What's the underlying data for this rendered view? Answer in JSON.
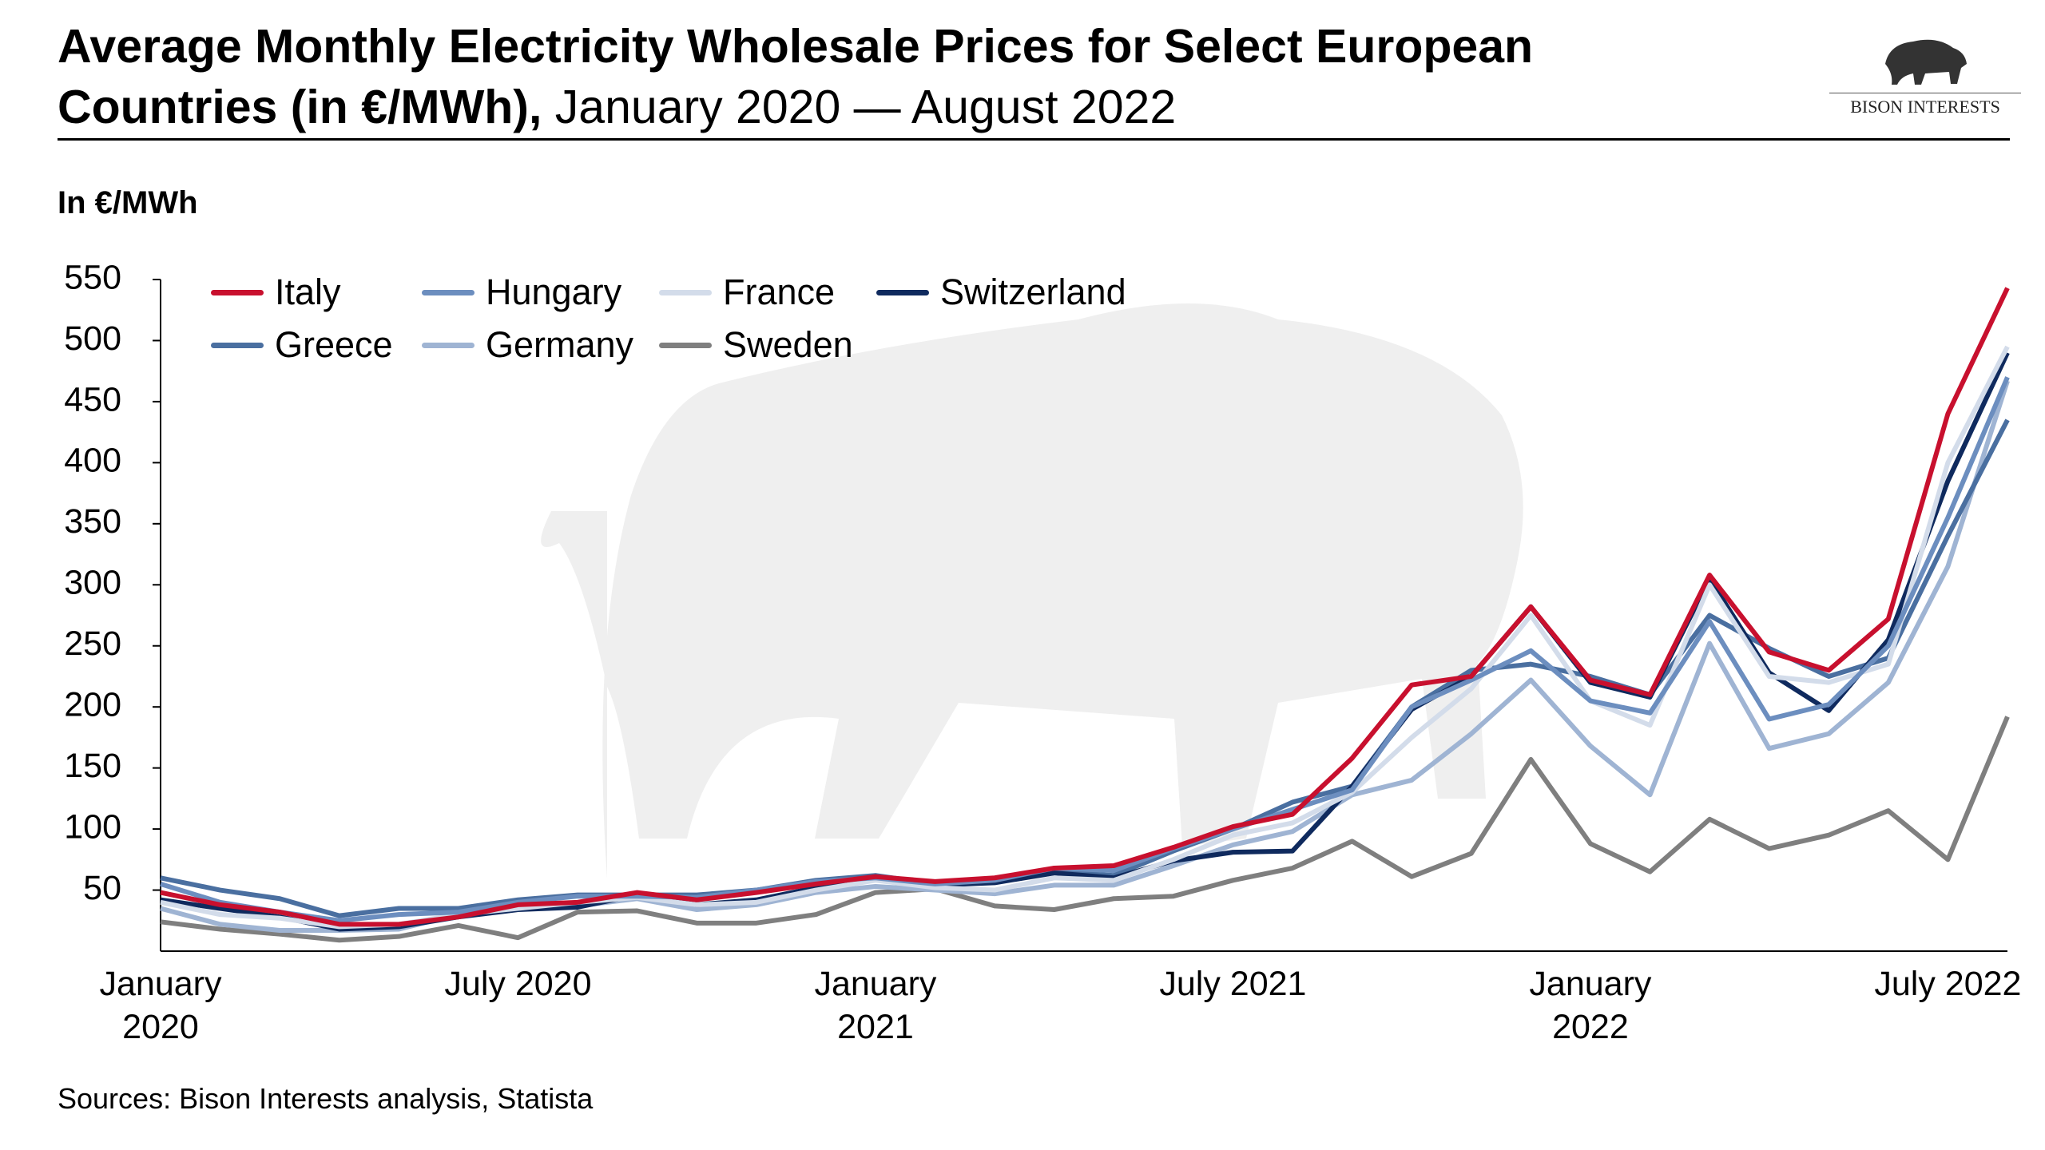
{
  "header": {
    "title": "Average Monthly Electricity Wholesale Prices for Select European Countries (in €/MWh),",
    "subtitle": "January 2020 — August 2022",
    "logo": "BISON INTERESTS"
  },
  "chart_data": {
    "type": "line",
    "y_label": "In €/MWh",
    "categories": [
      "January 2020",
      null,
      null,
      null,
      null,
      null,
      "July 2020",
      null,
      null,
      null,
      null,
      null,
      "January 2021",
      null,
      null,
      null,
      null,
      null,
      "July 2021",
      null,
      null,
      null,
      null,
      null,
      "January 2022",
      null,
      null,
      null,
      null,
      null,
      "July 2022",
      null
    ],
    "ylim": [
      0,
      550
    ],
    "yticks": [
      50,
      100,
      150,
      200,
      250,
      300,
      350,
      400,
      450,
      500,
      550
    ],
    "grid": false,
    "series": [
      {
        "name": "Italy",
        "color": "#c8102e",
        "values": [
          48,
          38,
          32,
          22,
          22,
          28,
          38,
          40,
          48,
          42,
          48,
          55,
          61,
          57,
          60,
          68,
          70,
          85,
          102,
          112,
          158,
          218,
          225,
          282,
          222,
          210,
          308,
          245,
          230,
          272,
          440,
          543
        ]
      },
      {
        "name": "Hungary",
        "color": "#6c8ebf",
        "values": [
          55,
          40,
          32,
          25,
          30,
          32,
          40,
          45,
          45,
          44,
          50,
          57,
          60,
          55,
          58,
          68,
          66,
          84,
          100,
          116,
          132,
          200,
          222,
          246,
          205,
          195,
          270,
          190,
          202,
          250,
          355,
          470
        ]
      },
      {
        "name": "France",
        "color": "#d3dcea",
        "values": [
          40,
          30,
          27,
          20,
          22,
          30,
          35,
          40,
          44,
          38,
          40,
          50,
          58,
          52,
          50,
          60,
          58,
          75,
          95,
          105,
          130,
          175,
          215,
          275,
          205,
          185,
          300,
          225,
          220,
          235,
          400,
          495
        ]
      },
      {
        "name": "Switzerland",
        "color": "#0f2a5e",
        "values": [
          42,
          35,
          28,
          18,
          20,
          28,
          34,
          36,
          46,
          38,
          42,
          52,
          61,
          54,
          56,
          64,
          60,
          74,
          81,
          82,
          135,
          198,
          225,
          282,
          220,
          208,
          305,
          228,
          197,
          255,
          385,
          490
        ]
      },
      {
        "name": "Greece",
        "color": "#4a6fa0",
        "values": [
          60,
          50,
          43,
          29,
          35,
          35,
          42,
          46,
          46,
          46,
          50,
          58,
          62,
          55,
          57,
          65,
          62,
          82,
          100,
          122,
          135,
          200,
          230,
          235,
          225,
          210,
          275,
          248,
          225,
          240,
          340,
          435
        ]
      },
      {
        "name": "Germany",
        "color": "#9fb4d3",
        "values": [
          35,
          22,
          17,
          17,
          18,
          30,
          35,
          37,
          43,
          34,
          38,
          48,
          53,
          50,
          47,
          54,
          54,
          70,
          87,
          98,
          128,
          140,
          178,
          222,
          168,
          128,
          252,
          166,
          178,
          220,
          315,
          467
        ]
      },
      {
        "name": "Sweden",
        "color": "#7f7f7f",
        "values": [
          24,
          18,
          14,
          9,
          12,
          21,
          11,
          32,
          33,
          23,
          23,
          30,
          48,
          51,
          37,
          34,
          43,
          45,
          58,
          68,
          90,
          61,
          80,
          157,
          88,
          65,
          108,
          84,
          95,
          115,
          75,
          192
        ]
      }
    ]
  },
  "source": "Sources: Bison Interests analysis, Statista"
}
